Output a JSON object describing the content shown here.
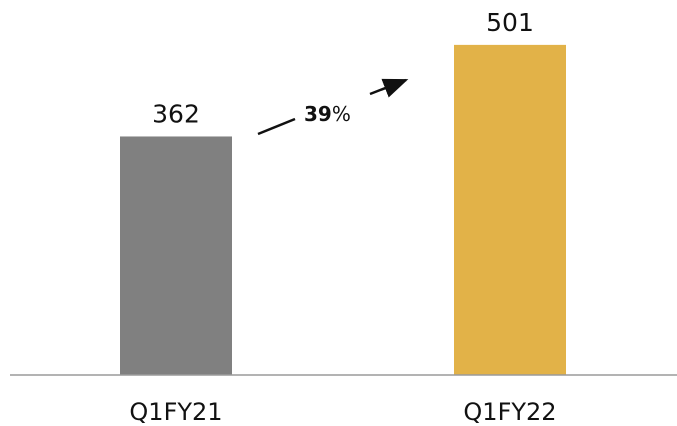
{
  "chart_data": {
    "type": "bar",
    "categories": [
      "Q1FY21",
      "Q1FY22"
    ],
    "values": [
      362,
      501
    ],
    "data_labels": [
      "362",
      "501"
    ],
    "ylim": [
      0,
      560
    ],
    "grid": false,
    "colors": [
      "#808080",
      "#E2B248"
    ],
    "annotation": {
      "number": "39",
      "unit": "%",
      "icon": "arrow-up-right-icon"
    }
  }
}
